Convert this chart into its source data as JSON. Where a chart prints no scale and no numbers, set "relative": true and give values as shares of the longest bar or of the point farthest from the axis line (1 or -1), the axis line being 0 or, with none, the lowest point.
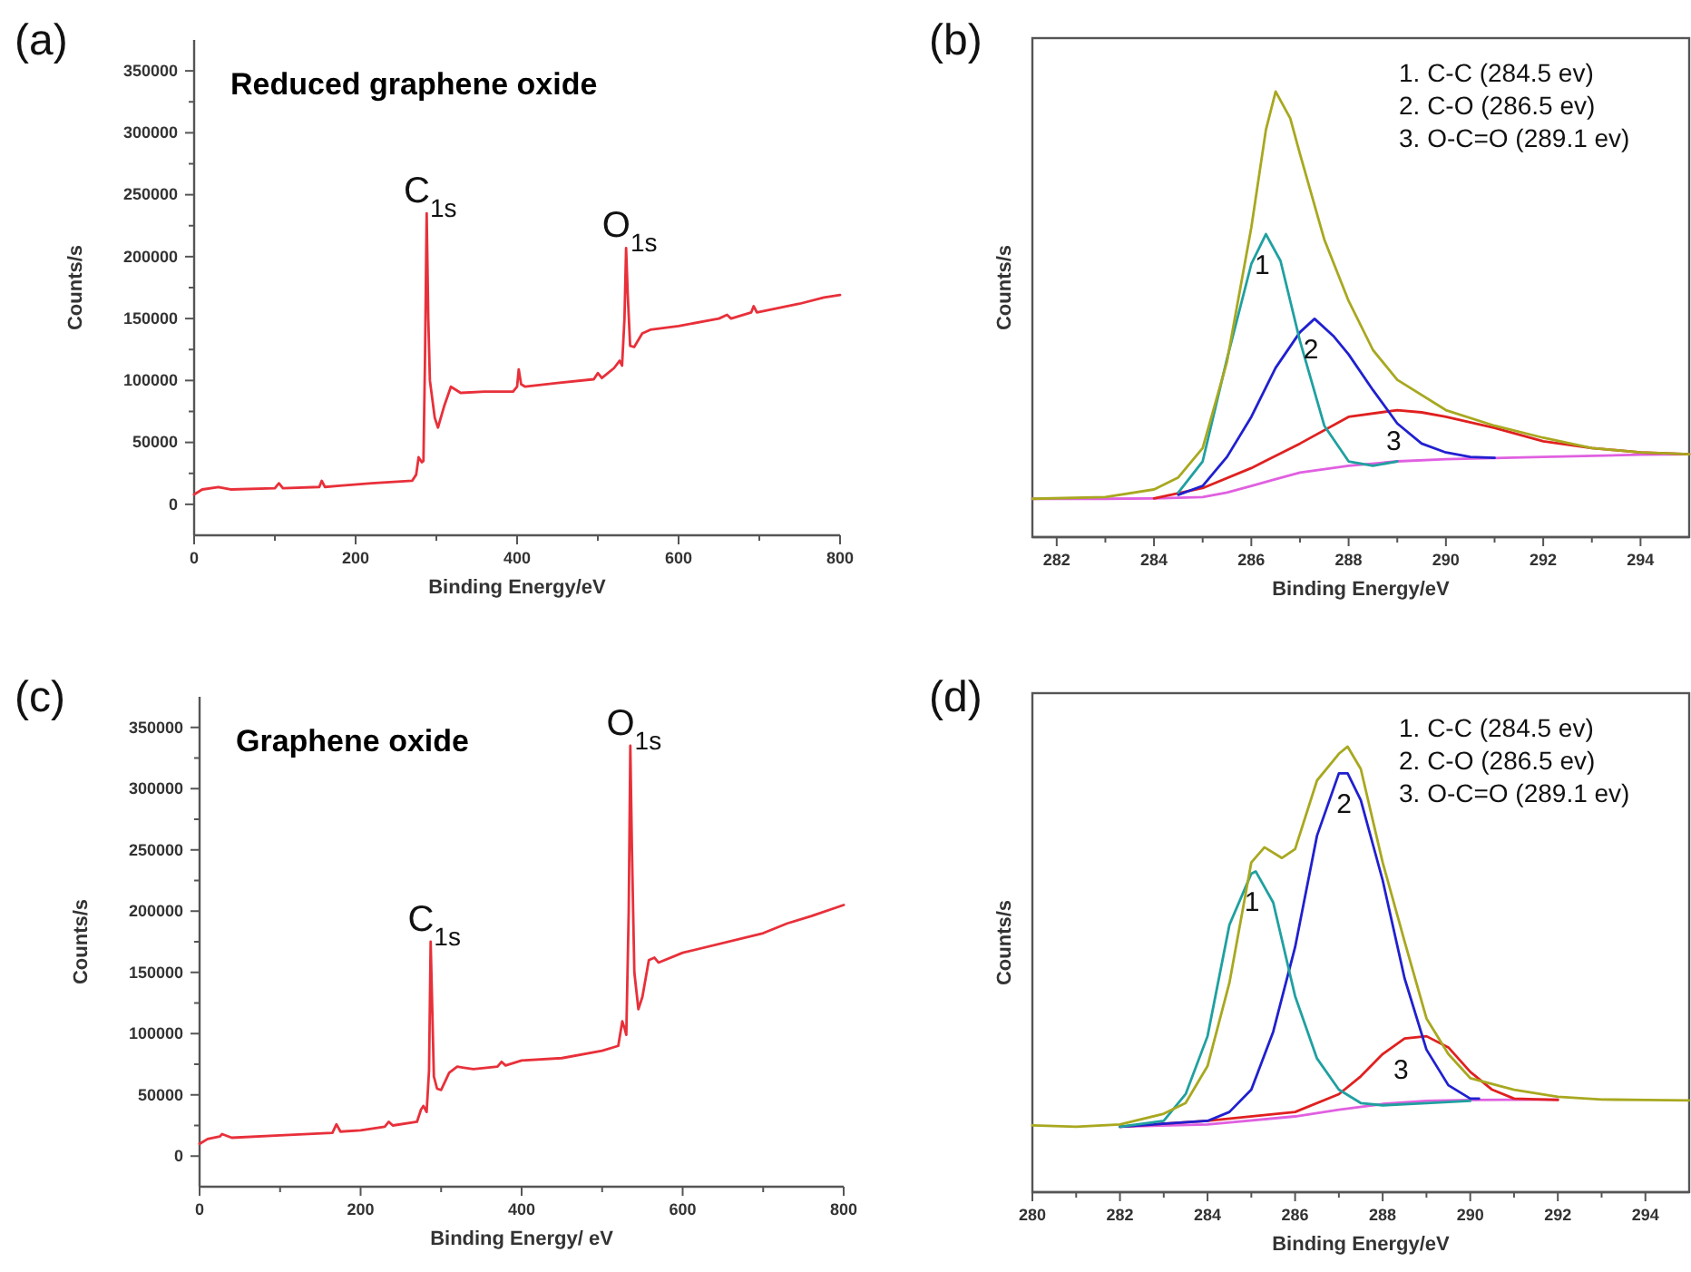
{
  "chart_data": [
    {
      "type": "line",
      "title": "Reduced graphene oxide",
      "xlabel": "Binding Energy/eV",
      "ylabel": "Counts/s",
      "xlim": [
        0,
        800
      ],
      "ylim": [
        -25000,
        375000
      ],
      "xticks": [
        0,
        {
          "value": 100,
          "label": null
        },
        200,
        {
          "value": 300,
          "label": null
        },
        400,
        {
          "value": 500,
          "label": null
        },
        600,
        {
          "value": 700,
          "label": null
        },
        800
      ],
      "yticks": [
        0,
        {
          "value": 25000,
          "label": null
        },
        50000,
        {
          "value": 75000,
          "label": null
        },
        100000,
        {
          "value": 125000,
          "label": null
        },
        150000,
        {
          "value": 175000,
          "label": null
        },
        200000,
        {
          "value": 225000,
          "label": null
        },
        250000,
        {
          "value": 275000,
          "label": null
        },
        300000,
        {
          "value": 325000,
          "label": null
        },
        350000
      ],
      "annotations": [
        "(a)",
        {
          "text": "C$_{1s}$",
          "x": 288,
          "y": 235000
        },
        {
          "text": "O$_{1s}$",
          "x": 535,
          "y": 207000
        }
      ],
      "series": [
        {
          "color": "#e8303a",
          "x": [
            0,
            10,
            30,
            45,
            100,
            105,
            110,
            155,
            158,
            162,
            180,
            220,
            270,
            275,
            278,
            282,
            284,
            286,
            288,
            290,
            292,
            298,
            302,
            310,
            318,
            330,
            360,
            395,
            400,
            402,
            405,
            410,
            450,
            495,
            500,
            505,
            520,
            527,
            530,
            533,
            535,
            537,
            540,
            545,
            555,
            565,
            600,
            650,
            660,
            665,
            690,
            693,
            697,
            750,
            780,
            800
          ],
          "values": [
            8000,
            12000,
            14000,
            12000,
            13000,
            17000,
            13000,
            14000,
            19000,
            14000,
            15000,
            17000,
            19000,
            24000,
            38000,
            34000,
            35000,
            120000,
            235000,
            150000,
            100000,
            70000,
            62000,
            80000,
            95000,
            90000,
            91000,
            91000,
            95000,
            109000,
            97000,
            95000,
            98000,
            101000,
            106000,
            102000,
            110000,
            116000,
            112000,
            150000,
            207000,
            170000,
            128000,
            127000,
            138000,
            141000,
            144000,
            150000,
            153000,
            150000,
            155000,
            160000,
            155000,
            162000,
            167000,
            169000
          ]
        }
      ]
    },
    {
      "type": "line",
      "xlabel": "Binding Energy/eV",
      "ylabel": "Counts/s",
      "relative": true,
      "tick_labels": "x",
      "xlim": [
        281.5,
        295
      ],
      "xticks": [
        282,
        {
          "value": 283,
          "label": null
        },
        284,
        {
          "value": 285,
          "label": null
        },
        286,
        {
          "value": 287,
          "label": null
        },
        288,
        {
          "value": 289,
          "label": null
        },
        290,
        {
          "value": 291,
          "label": null
        },
        292,
        {
          "value": 293,
          "label": null
        },
        294
      ],
      "annotations": [
        "(b)",
        "1. C-C (284.5 ev)",
        "2. C-O (286.5 ev)",
        "3. O-C=O (289.1 ev)",
        {
          "text": "1",
          "x": 286.3,
          "y": 0.68
        },
        {
          "text": "2",
          "x": 287.3,
          "y": 0.49
        },
        {
          "text": "3",
          "x": 289,
          "y": 0.285
        }
      ],
      "series": [
        {
          "color": "#e060e0",
          "x": [
            281.5,
            283,
            284,
            285,
            285.5,
            286,
            286.5,
            287,
            288,
            289,
            290,
            292,
            294,
            295
          ],
          "values": [
            0.086,
            0.086,
            0.087,
            0.09,
            0.1,
            0.115,
            0.13,
            0.145,
            0.16,
            0.17,
            0.175,
            0.18,
            0.185,
            0.186
          ]
        },
        {
          "color": "#e02020",
          "x": [
            284,
            285,
            286,
            287,
            288,
            289,
            289.5,
            290,
            291,
            292,
            293,
            294,
            295
          ],
          "values": [
            0.087,
            0.11,
            0.155,
            0.21,
            0.27,
            0.285,
            0.28,
            0.27,
            0.245,
            0.215,
            0.2,
            0.19,
            0.186
          ]
        },
        {
          "color": "#2020d0",
          "x": [
            284.5,
            285,
            285.5,
            286,
            286.5,
            287,
            287.3,
            287.7,
            288,
            288.5,
            289,
            289.5,
            290,
            290.5,
            291
          ],
          "values": [
            0.095,
            0.115,
            0.18,
            0.27,
            0.38,
            0.46,
            0.49,
            0.45,
            0.41,
            0.33,
            0.255,
            0.21,
            0.19,
            0.18,
            0.178
          ]
        },
        {
          "color": "#20a0a0",
          "x": [
            284.5,
            285,
            285.5,
            286,
            286.3,
            286.6,
            287,
            287.5,
            288,
            288.5,
            289
          ],
          "values": [
            0.1,
            0.17,
            0.4,
            0.613,
            0.68,
            0.62,
            0.44,
            0.25,
            0.17,
            0.16,
            0.17
          ]
        },
        {
          "color": "#a8a820",
          "x": [
            281.5,
            283,
            284,
            284.5,
            285,
            285.5,
            286,
            286.3,
            286.5,
            286.8,
            287,
            287.5,
            288,
            288.5,
            289,
            290,
            291,
            292,
            293,
            294,
            295
          ],
          "values": [
            0.086,
            0.09,
            0.107,
            0.134,
            0.2,
            0.394,
            0.695,
            0.914,
            1,
            0.94,
            0.86,
            0.668,
            0.53,
            0.42,
            0.353,
            0.285,
            0.25,
            0.223,
            0.2,
            0.19,
            0.186
          ]
        }
      ]
    },
    {
      "type": "line",
      "title": "Graphene oxide",
      "xlabel": "Binding Energy/ eV",
      "ylabel": "Counts/s",
      "xlim": [
        0,
        800
      ],
      "ylim": [
        -25000,
        375000
      ],
      "xticks": [
        0,
        {
          "value": 100,
          "label": null
        },
        200,
        {
          "value": 300,
          "label": null
        },
        400,
        {
          "value": 500,
          "label": null
        },
        600,
        {
          "value": 700,
          "label": null
        },
        800
      ],
      "yticks": [
        0,
        {
          "value": 25000,
          "label": null
        },
        50000,
        {
          "value": 75000,
          "label": null
        },
        100000,
        {
          "value": 125000,
          "label": null
        },
        150000,
        {
          "value": 175000,
          "label": null
        },
        200000,
        {
          "value": 225000,
          "label": null
        },
        250000,
        {
          "value": 275000,
          "label": null
        },
        300000,
        {
          "value": 325000,
          "label": null
        },
        350000
      ],
      "annotations": [
        "(c)",
        {
          "text": "C$_{1s}$",
          "x": 287,
          "y": 175000
        },
        {
          "text": "O$_{1s}$",
          "x": 535,
          "y": 335000
        }
      ],
      "series": [
        {
          "color": "#e8303a",
          "x": [
            0,
            10,
            25,
            28,
            40,
            100,
            165,
            170,
            175,
            200,
            230,
            235,
            240,
            270,
            275,
            278,
            282,
            285,
            287,
            289,
            291,
            295,
            300,
            310,
            320,
            340,
            370,
            375,
            380,
            400,
            450,
            500,
            520,
            525,
            528,
            530,
            533,
            535,
            537,
            540,
            545,
            550,
            558,
            565,
            570,
            600,
            700,
            730,
            760,
            800
          ],
          "values": [
            10000,
            14000,
            16000,
            18000,
            15000,
            17000,
            19000,
            26000,
            20000,
            21000,
            24000,
            28000,
            25000,
            28000,
            38000,
            41000,
            36000,
            70000,
            175000,
            120000,
            65000,
            55000,
            54000,
            68000,
            73000,
            71000,
            73000,
            77000,
            74000,
            78000,
            80000,
            86000,
            90000,
            110000,
            104000,
            99000,
            200000,
            335000,
            250000,
            150000,
            120000,
            130000,
            160000,
            162000,
            158000,
            166000,
            182000,
            190000,
            196000,
            205000
          ]
        }
      ]
    },
    {
      "type": "line",
      "xlabel": "Binding Energy/eV",
      "ylabel": "Counts/s",
      "relative": true,
      "tick_labels": "x",
      "xlim": [
        280,
        295
      ],
      "xticks": [
        280,
        {
          "value": 281,
          "label": null
        },
        282,
        {
          "value": 283,
          "label": null
        },
        284,
        {
          "value": 285,
          "label": null
        },
        286,
        {
          "value": 287,
          "label": null
        },
        288,
        {
          "value": 289,
          "label": null
        },
        290,
        {
          "value": 291,
          "label": null
        },
        292,
        {
          "value": 293,
          "label": null
        },
        294
      ],
      "annotations": [
        "(d)",
        "1. C-C (284.5 ev)",
        "2. C-O (286.5 ev)",
        "3. O-C=O (289.1 ev)",
        {
          "text": "1",
          "x": 285.1,
          "y": 0.72
        },
        {
          "text": "2",
          "x": 287.2,
          "y": 0.94
        },
        {
          "text": "3",
          "x": 288.5,
          "y": 0.345
        }
      ],
      "series": [
        {
          "color": "#e060e0",
          "x": [
            282,
            284,
            286,
            287,
            288,
            289,
            290,
            292
          ],
          "values": [
            0.147,
            0.152,
            0.17,
            0.185,
            0.198,
            0.205,
            0.207,
            0.208
          ]
        },
        {
          "color": "#e02020",
          "x": [
            282,
            284,
            286,
            287,
            287.5,
            288,
            288.5,
            289,
            289.5,
            290,
            290.5,
            291,
            292
          ],
          "values": [
            0.147,
            0.16,
            0.18,
            0.22,
            0.26,
            0.31,
            0.345,
            0.35,
            0.325,
            0.27,
            0.23,
            0.21,
            0.207
          ]
        },
        {
          "color": "#2020d0",
          "x": [
            282,
            284,
            284.5,
            285,
            285.5,
            286,
            286.5,
            287,
            287.2,
            287.5,
            288,
            288.5,
            289,
            289.5,
            290,
            290.2
          ],
          "values": [
            0.147,
            0.16,
            0.18,
            0.23,
            0.36,
            0.55,
            0.8,
            0.94,
            0.94,
            0.88,
            0.7,
            0.48,
            0.32,
            0.24,
            0.21,
            0.21
          ]
        },
        {
          "color": "#20a0a0",
          "x": [
            282,
            283,
            283.5,
            284,
            284.5,
            285,
            285.1,
            285.5,
            286,
            286.5,
            287,
            287.5,
            288,
            289,
            290
          ],
          "values": [
            0.147,
            0.16,
            0.22,
            0.35,
            0.6,
            0.715,
            0.72,
            0.65,
            0.44,
            0.3,
            0.23,
            0.2,
            0.195,
            0.2,
            0.205
          ]
        },
        {
          "color": "#a8a820",
          "x": [
            280,
            281,
            282,
            283,
            283.5,
            284,
            284.5,
            285,
            285.3,
            285.7,
            286,
            286.5,
            287,
            287.2,
            287.5,
            288,
            288.5,
            289,
            289.5,
            290,
            291,
            292,
            293,
            294,
            295
          ],
          "values": [
            0.15,
            0.147,
            0.152,
            0.176,
            0.2,
            0.283,
            0.47,
            0.74,
            0.774,
            0.75,
            0.77,
            0.924,
            0.984,
            1,
            0.95,
            0.74,
            0.563,
            0.39,
            0.31,
            0.256,
            0.23,
            0.214,
            0.208,
            0.207,
            0.206
          ]
        }
      ]
    }
  ]
}
